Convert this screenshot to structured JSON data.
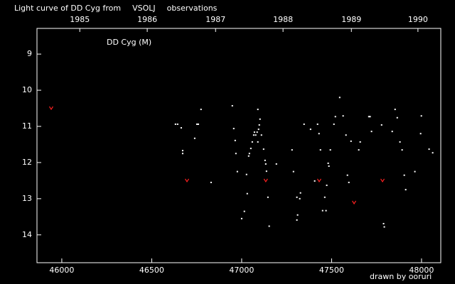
{
  "chart_data": {
    "type": "scatter",
    "title_parts": [
      {
        "text": "Light curve of DD Cyg from",
        "color": "#ffffff"
      },
      {
        "text": "VSOLJ",
        "color": "#ffff00"
      },
      {
        "text": "observations",
        "color": "#ffffff"
      }
    ],
    "annotation": "DD Cyg (M)",
    "credit": {
      "text": "drawn by ooruri",
      "color": "#00c8ff"
    },
    "xlim": [
      45862,
      48107
    ],
    "xticks": [
      46000,
      46500,
      47000,
      47500,
      48000
    ],
    "x2ticks": [
      {
        "value": 46100,
        "label": "1985"
      },
      {
        "value": 46475,
        "label": "1986"
      },
      {
        "value": 46855,
        "label": "1987"
      },
      {
        "value": 47230,
        "label": "1988"
      },
      {
        "value": 47610,
        "label": "1989"
      },
      {
        "value": 47980,
        "label": "1990"
      }
    ],
    "ylim": [
      8.29,
      14.77
    ],
    "y_inverted": true,
    "yticks": [
      9,
      10,
      11,
      12,
      13,
      14
    ],
    "series": [
      {
        "color": "#ffffff",
        "marker": "dot",
        "x": [
          46632,
          46644,
          46664,
          46672,
          46672,
          46739,
          46751,
          46759,
          46774,
          46830,
          46948,
          46956,
          46964,
          46968,
          46976,
          47000,
          47015,
          47027,
          47031,
          47039,
          47043,
          47051,
          47059,
          47067,
          47071,
          47078,
          47086,
          47094,
          47090,
          47090,
          47098,
          47102,
          47110,
          47122,
          47130,
          47134,
          47138,
          47146,
          47153,
          47193,
          47280,
          47288,
          47307,
          47307,
          47311,
          47323,
          47327,
          47347,
          47383,
          47406,
          47422,
          47430,
          47438,
          47450,
          47462,
          47469,
          47473,
          47481,
          47485,
          47493,
          47513,
          47521,
          47545,
          47564,
          47580,
          47588,
          47596,
          47608,
          47651,
          47659,
          47707,
          47714,
          47722,
          47778,
          47789,
          47793,
          47837,
          47853,
          47865,
          47880,
          47892,
          47904,
          47912,
          47963,
          47995,
          47999,
          48042,
          48062
        ],
        "values": [
          10.94,
          10.94,
          11.04,
          11.67,
          11.75,
          11.33,
          10.94,
          10.94,
          10.53,
          12.55,
          10.43,
          11.06,
          11.39,
          11.75,
          12.25,
          13.55,
          13.35,
          12.33,
          12.86,
          11.82,
          11.75,
          11.61,
          11.43,
          11.24,
          11.16,
          11.24,
          11.16,
          11.08,
          11.43,
          10.53,
          10.96,
          10.8,
          11.24,
          11.63,
          11.94,
          12.04,
          12.24,
          12.96,
          13.76,
          12.04,
          11.65,
          12.25,
          12.96,
          13.59,
          13.45,
          13.0,
          12.84,
          10.94,
          11.08,
          12.51,
          10.94,
          11.2,
          11.65,
          13.33,
          12.96,
          13.33,
          12.63,
          12.02,
          12.1,
          11.65,
          10.94,
          10.73,
          10.2,
          10.71,
          11.24,
          12.35,
          12.55,
          11.41,
          11.65,
          11.43,
          10.73,
          10.73,
          11.14,
          10.96,
          13.69,
          13.78,
          11.14,
          10.53,
          10.76,
          11.43,
          11.65,
          12.35,
          12.75,
          12.25,
          11.2,
          10.71,
          11.63,
          11.73
        ]
      },
      {
        "color": "#ff2020",
        "marker": "fainter",
        "x": [
          45941,
          46696,
          47134,
          47431,
          47625,
          47783
        ],
        "values": [
          10.49,
          12.49,
          12.49,
          12.49,
          13.1,
          12.49
        ]
      }
    ]
  }
}
